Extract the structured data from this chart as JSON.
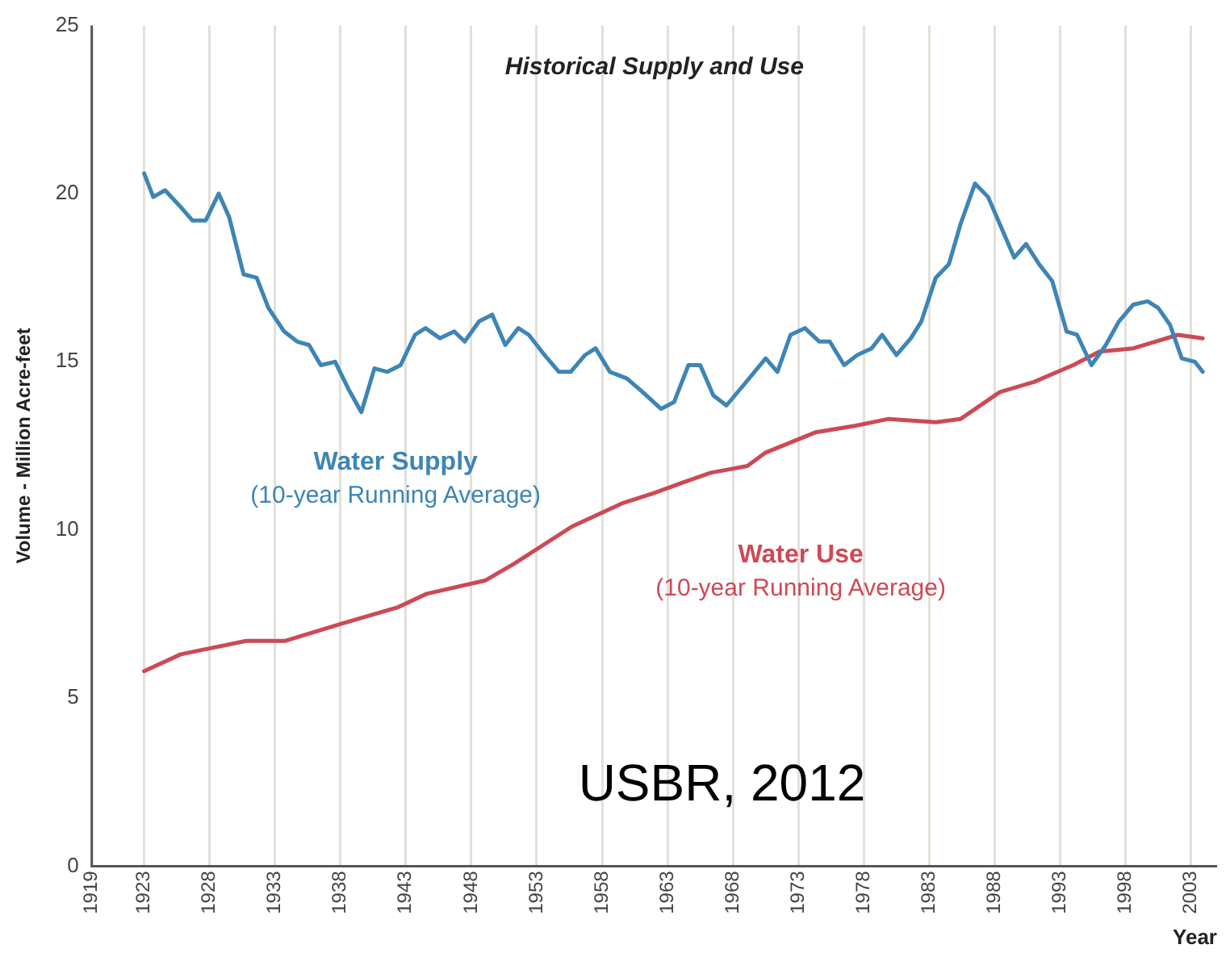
{
  "chart_data": {
    "type": "line",
    "title": "Historical Supply and Use",
    "xlabel": "Year",
    "ylabel": "Volume - Million Acre-feet",
    "xlim": [
      1919,
      2005
    ],
    "xticks": [
      1919,
      1923,
      1928,
      1933,
      1938,
      1943,
      1948,
      1953,
      1958,
      1963,
      1968,
      1973,
      1978,
      1983,
      1988,
      1993,
      1998,
      2003
    ],
    "ylim": [
      0,
      25
    ],
    "yticks": [
      0,
      5,
      10,
      15,
      20,
      25
    ],
    "grid": "x",
    "legend": false,
    "marker": "none",
    "line_style": "solid",
    "annotations": [
      "(10-year Running Average)",
      "(10-year Running Average)",
      "USBR, 2012"
    ],
    "series": [
      {
        "name": "Water Supply",
        "color": "#3d85b5",
        "x": [
          1923,
          1923.7,
          1924.6,
          1925.8,
          1926.7,
          1927.7,
          1928.7,
          1929.5,
          1930.6,
          1931.6,
          1932.5,
          1933.7,
          1934.7,
          1935.6,
          1936.5,
          1937.6,
          1938.6,
          1939.6,
          1940.6,
          1941.6,
          1942.6,
          1943.7,
          1944.5,
          1945.6,
          1946.7,
          1947.5,
          1948.6,
          1949.6,
          1950.6,
          1951.6,
          1952.4,
          1953.6,
          1954.7,
          1955.6,
          1956.7,
          1957.5,
          1958.6,
          1959.9,
          1961.1,
          1962.5,
          1963.5,
          1964.6,
          1965.5,
          1966.5,
          1967.5,
          1968.8,
          1970.5,
          1971.4,
          1972.4,
          1973.5,
          1974.6,
          1975.4,
          1976.5,
          1977.5,
          1978.6,
          1979.4,
          1980.5,
          1981.6,
          1982.4,
          1983.5,
          1984.5,
          1985.4,
          1986.5,
          1987.5,
          1988.5,
          1989.5,
          1990.4,
          1991.4,
          1992.4,
          1993.5,
          1994.3,
          1995.4,
          1996.5,
          1997.5,
          1998.6,
          1999.7,
          2000.5,
          2001.4,
          2002.3,
          2003.3,
          2003.9
        ],
        "values": [
          20.6,
          19.9,
          20.1,
          19.6,
          19.2,
          19.2,
          20.0,
          19.3,
          17.6,
          17.5,
          16.6,
          15.9,
          15.6,
          15.5,
          14.9,
          15.0,
          14.2,
          13.5,
          14.8,
          14.7,
          14.9,
          15.8,
          16.0,
          15.7,
          15.9,
          15.6,
          16.2,
          16.4,
          15.5,
          16.0,
          15.8,
          15.2,
          14.7,
          14.7,
          15.2,
          15.4,
          14.7,
          14.5,
          14.1,
          13.6,
          13.8,
          14.9,
          14.9,
          14.0,
          13.7,
          14.3,
          15.1,
          14.7,
          15.8,
          16.0,
          15.6,
          15.6,
          14.9,
          15.2,
          15.4,
          15.8,
          15.2,
          15.7,
          16.2,
          17.5,
          17.9,
          19.1,
          20.3,
          19.9,
          19.0,
          18.1,
          18.5,
          17.9,
          17.4,
          15.9,
          15.8,
          14.9,
          15.5,
          16.2,
          16.7,
          16.8,
          16.6,
          16.1,
          15.1,
          15.0,
          14.7
        ]
      },
      {
        "name": "Water Use",
        "color": "#cc4a55",
        "x": [
          1923,
          1925.8,
          1930.8,
          1933.8,
          1938,
          1942.4,
          1944.6,
          1949.1,
          1951.3,
          1955.7,
          1959.6,
          1962,
          1964.1,
          1966.3,
          1969.1,
          1970.5,
          1974.3,
          1977.4,
          1979.9,
          1983.5,
          1985.4,
          1988.4,
          1991,
          1994,
          1996,
          1998.6,
          2002,
          2003.9
        ],
        "values": [
          5.8,
          6.3,
          6.7,
          6.7,
          7.2,
          7.7,
          8.1,
          8.5,
          9.0,
          10.1,
          10.8,
          11.1,
          11.4,
          11.7,
          11.9,
          12.3,
          12.9,
          13.1,
          13.3,
          13.2,
          13.3,
          14.1,
          14.4,
          14.9,
          15.3,
          15.4,
          15.8,
          15.7
        ]
      }
    ]
  }
}
